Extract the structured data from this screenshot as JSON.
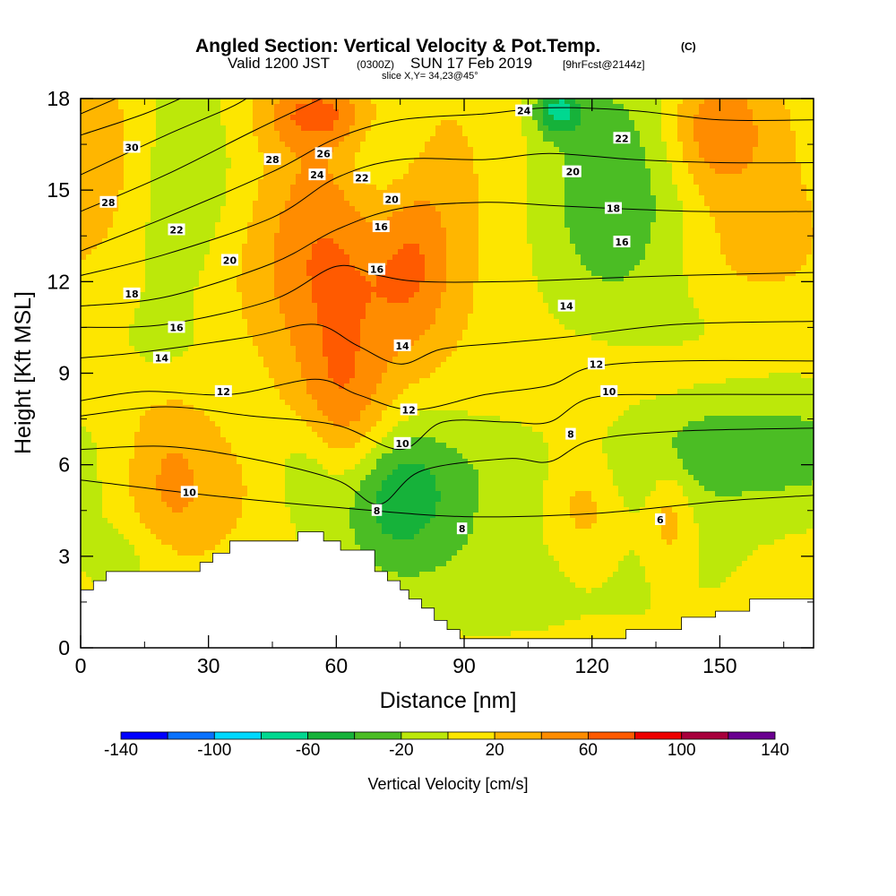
{
  "header": {
    "title": "Angled Section: Vertical Velocity & Pot.Temp.",
    "title_unit": "(C)",
    "valid_prefix": "Valid 1200 JST",
    "valid_z": "(0300Z)",
    "valid_date": "SUN 17 Feb 2019",
    "fcst": "[9hrFcst@2144z]",
    "slice": "slice X,Y= 34,23@45°"
  },
  "chart_data": {
    "type": "heatmap",
    "title": "Angled Section: Vertical Velocity & Pot.Temp.",
    "xlabel": "Distance [nm]",
    "ylabel": "Height [Kft MSL]",
    "xlim": [
      0,
      172
    ],
    "ylim": [
      0,
      18
    ],
    "x_ticks": [
      "0",
      "30",
      "60",
      "90",
      "120",
      "150"
    ],
    "y_ticks": [
      "0",
      "3",
      "6",
      "9",
      "12",
      "15",
      "18"
    ],
    "grid": false,
    "background_value": 10,
    "fill_field": "Vertical Velocity [cm/s]",
    "fill_features": [
      {
        "x": 20,
        "y": 5.5,
        "w": 26,
        "sy": 3.2,
        "v": 38
      },
      {
        "x": 19,
        "y": 10,
        "w": 22,
        "sy": 1.5,
        "v": -12
      },
      {
        "x": 23,
        "y": 15,
        "w": 34,
        "sy": 5,
        "v": -30
      },
      {
        "x": 3,
        "y": 16,
        "w": 35,
        "sy": 3.5,
        "v": 30
      },
      {
        "x": 4,
        "y": 5.5,
        "w": 45,
        "sy": 3,
        "v": -15
      },
      {
        "x": 13,
        "y": 3,
        "w": 25,
        "sy": 1.2,
        "v": -18
      },
      {
        "x": 36,
        "y": 5,
        "w": 45,
        "sy": 2.5,
        "v": 18
      },
      {
        "x": 53,
        "y": 6,
        "w": 18,
        "sy": 2,
        "v": -30
      },
      {
        "x": 61,
        "y": 7.5,
        "w": 26,
        "sy": 3.5,
        "v": 55
      },
      {
        "x": 60,
        "y": 14,
        "w": 38,
        "sy": 4,
        "v": 40
      },
      {
        "x": 56,
        "y": 17.5,
        "w": 30,
        "sy": 1,
        "v": 45
      },
      {
        "x": 47,
        "y": 12,
        "w": 55,
        "sy": 2.5,
        "v": 15
      },
      {
        "x": 70,
        "y": 16,
        "w": 24,
        "sy": 3,
        "v": -40
      },
      {
        "x": 72,
        "y": 5,
        "w": 34,
        "sy": 2.2,
        "v": -55
      },
      {
        "x": 78,
        "y": 12.5,
        "w": 20,
        "sy": 3,
        "v": 35
      },
      {
        "x": 90,
        "y": 15,
        "w": 70,
        "sy": 5,
        "v": 15
      },
      {
        "x": 96,
        "y": 5,
        "w": 150,
        "sy": 3.5,
        "v": -18
      },
      {
        "x": 120,
        "y": 15,
        "w": 45,
        "sy": 5,
        "v": -38
      },
      {
        "x": 112,
        "y": 17.6,
        "w": 12,
        "sy": 0.8,
        "v": -60
      },
      {
        "x": 132,
        "y": 15,
        "w": 40,
        "sy": 4,
        "v": -28
      },
      {
        "x": 118,
        "y": 5,
        "w": 22,
        "sy": 2.5,
        "v": 38
      },
      {
        "x": 119,
        "y": 8,
        "w": 60,
        "sy": 2.5,
        "v": 20
      },
      {
        "x": 138,
        "y": 4.5,
        "w": 12,
        "sy": 2,
        "v": 35
      },
      {
        "x": 144,
        "y": 15,
        "w": 60,
        "sy": 4,
        "v": 18
      },
      {
        "x": 149,
        "y": 17,
        "w": 25,
        "sy": 2,
        "v": 45
      },
      {
        "x": 152,
        "y": 6.5,
        "w": 110,
        "sy": 1.8,
        "v": -42
      },
      {
        "x": 160,
        "y": 10.5,
        "w": 80,
        "sy": 1.5,
        "v": -12
      },
      {
        "x": 160,
        "y": 13,
        "w": 30,
        "sy": 2,
        "v": 12
      },
      {
        "x": 100,
        "y": 2,
        "w": 120,
        "sy": 2,
        "v": -12
      }
    ],
    "terrain": [
      [
        0,
        1.9
      ],
      [
        3,
        1.9
      ],
      [
        3,
        2.2
      ],
      [
        6,
        2.2
      ],
      [
        6,
        2.5
      ],
      [
        25,
        2.5
      ],
      [
        28,
        2.5
      ],
      [
        28,
        2.8
      ],
      [
        31,
        2.8
      ],
      [
        31,
        3.1
      ],
      [
        35,
        3.1
      ],
      [
        35,
        3.5
      ],
      [
        51,
        3.5
      ],
      [
        51,
        3.8
      ],
      [
        57,
        3.8
      ],
      [
        57,
        3.5
      ],
      [
        61,
        3.5
      ],
      [
        61,
        3.2
      ],
      [
        69,
        3.2
      ],
      [
        69,
        2.5
      ],
      [
        72,
        2.5
      ],
      [
        72,
        2.2
      ],
      [
        75,
        2.2
      ],
      [
        75,
        1.9
      ],
      [
        77,
        1.9
      ],
      [
        77,
        1.6
      ],
      [
        80,
        1.6
      ],
      [
        80,
        1.3
      ],
      [
        83,
        1.3
      ],
      [
        83,
        0.9
      ],
      [
        86,
        0.9
      ],
      [
        86,
        0.6
      ],
      [
        89,
        0.6
      ],
      [
        89,
        0.3
      ],
      [
        128,
        0.3
      ],
      [
        128,
        0.6
      ],
      [
        141,
        0.6
      ],
      [
        141,
        1.0
      ],
      [
        149,
        1.0
      ],
      [
        149,
        1.2
      ],
      [
        157,
        1.2
      ],
      [
        157,
        1.6
      ],
      [
        172,
        1.6
      ]
    ],
    "isentropes": [
      {
        "level": 6,
        "pts": [
          [
            0,
            5.5
          ],
          [
            30,
            5
          ],
          [
            60,
            4.6
          ],
          [
            90,
            4.3
          ],
          [
            120,
            4.4
          ],
          [
            150,
            4.8
          ],
          [
            172,
            5
          ]
        ],
        "label": {
          "text": "6",
          "x": 136,
          "y": 4.2
        }
      },
      {
        "level": 8,
        "pts": [
          [
            0,
            6.5
          ],
          [
            20,
            6.6
          ],
          [
            40,
            6.2
          ],
          [
            60,
            5.5
          ],
          [
            70,
            4.7
          ],
          [
            80,
            5.8
          ],
          [
            100,
            6.2
          ],
          [
            110,
            6.1
          ],
          [
            120,
            6.8
          ],
          [
            140,
            7.1
          ],
          [
            172,
            7.2
          ]
        ],
        "label": {
          "text": "8",
          "x": 115,
          "y": 7
        }
      },
      {
        "level": 10,
        "pts": [
          [
            0,
            7.6
          ],
          [
            20,
            7.9
          ],
          [
            40,
            7.6
          ],
          [
            60,
            7.3
          ],
          [
            75,
            6.5
          ],
          [
            85,
            7.4
          ],
          [
            100,
            7.4
          ],
          [
            110,
            7.4
          ],
          [
            120,
            8.2
          ],
          [
            140,
            8.3
          ],
          [
            172,
            8.3
          ]
        ],
        "label": {
          "text": "10",
          "x": 124,
          "y": 8.4
        }
      },
      {
        "level": 12,
        "pts": [
          [
            0,
            8.1
          ],
          [
            15,
            8.4
          ],
          [
            35,
            8.3
          ],
          [
            55,
            8.8
          ],
          [
            65,
            8.3
          ],
          [
            78,
            7.8
          ],
          [
            95,
            8.3
          ],
          [
            110,
            8.6
          ],
          [
            120,
            9.2
          ],
          [
            140,
            9.4
          ],
          [
            172,
            9.4
          ]
        ],
        "label": {
          "text": "12",
          "x": 121,
          "y": 9.3
        }
      },
      {
        "level": 14,
        "pts": [
          [
            0,
            9.5
          ],
          [
            15,
            9.7
          ],
          [
            40,
            10.2
          ],
          [
            55,
            10.6
          ],
          [
            65,
            9.9
          ],
          [
            75,
            9.3
          ],
          [
            85,
            9.8
          ],
          [
            100,
            10
          ],
          [
            115,
            10.2
          ],
          [
            140,
            10.6
          ],
          [
            172,
            10.7
          ]
        ],
        "label": {
          "text": "14",
          "x": 114,
          "y": 11.2
        }
      },
      {
        "level": 16,
        "pts": [
          [
            0,
            10.5
          ],
          [
            20,
            10.6
          ],
          [
            45,
            11.4
          ],
          [
            60,
            12.5
          ],
          [
            70,
            12.2
          ],
          [
            80,
            12
          ],
          [
            100,
            12
          ],
          [
            120,
            12.1
          ],
          [
            140,
            12.2
          ],
          [
            172,
            12.3
          ]
        ],
        "label": {
          "text": "16",
          "x": 127,
          "y": 13.3
        }
      },
      {
        "level": 18,
        "pts": [
          [
            0,
            11.2
          ],
          [
            20,
            11.5
          ],
          [
            45,
            12.6
          ],
          [
            60,
            13.7
          ],
          [
            75,
            14.4
          ],
          [
            95,
            14.6
          ],
          [
            110,
            14.5
          ],
          [
            125,
            14.4
          ],
          [
            145,
            14.3
          ],
          [
            172,
            14.3
          ]
        ],
        "label": {
          "text": "18",
          "x": 125,
          "y": 14.4
        }
      },
      {
        "level": 20,
        "pts": [
          [
            0,
            12.2
          ],
          [
            20,
            12.9
          ],
          [
            45,
            14.1
          ],
          [
            60,
            15.4
          ],
          [
            75,
            16
          ],
          [
            95,
            16
          ],
          [
            110,
            16.2
          ],
          [
            130,
            16
          ],
          [
            150,
            15.9
          ],
          [
            172,
            15.9
          ]
        ],
        "label": {
          "text": "20",
          "x": 115,
          "y": 15.6
        }
      },
      {
        "level": 22,
        "pts": [
          [
            0,
            13
          ],
          [
            20,
            14.1
          ],
          [
            45,
            15.6
          ],
          [
            60,
            16.7
          ],
          [
            75,
            17.3
          ],
          [
            95,
            17.5
          ],
          [
            110,
            17.7
          ],
          [
            130,
            17.6
          ],
          [
            150,
            17.3
          ],
          [
            172,
            17.3
          ]
        ],
        "label": {
          "text": "22",
          "x": 127,
          "y": 16.7
        }
      },
      {
        "level": 24,
        "pts": [
          [
            0,
            14.3
          ],
          [
            20,
            15.5
          ],
          [
            40,
            16.9
          ],
          [
            55,
            17.9
          ],
          [
            60,
            18.2
          ]
        ],
        "label": {
          "text": "24",
          "x": 55.5,
          "y": 15.5
        }
      },
      {
        "level": 26,
        "pts": [
          [
            0,
            15.5
          ],
          [
            20,
            16.8
          ],
          [
            35,
            17.7
          ],
          [
            40,
            18.1
          ]
        ],
        "label": {
          "text": "26",
          "x": 57,
          "y": 16.2
        }
      },
      {
        "level": 28,
        "pts": [
          [
            0,
            16.8
          ],
          [
            15,
            17.5
          ],
          [
            25,
            18.1
          ]
        ],
        "label": {
          "text": "28",
          "x": 45,
          "y": 16
        }
      },
      {
        "level": 30,
        "pts": [
          [
            0,
            17.5
          ],
          [
            10,
            18.1
          ]
        ],
        "label": {
          "text": "30",
          "x": 12,
          "y": 16.4
        }
      }
    ],
    "extra_labels": [
      {
        "text": "28",
        "x": 6.5,
        "y": 14.6
      },
      {
        "text": "22",
        "x": 22.5,
        "y": 13.7
      },
      {
        "text": "20",
        "x": 35,
        "y": 12.7
      },
      {
        "text": "18",
        "x": 12,
        "y": 11.6
      },
      {
        "text": "16",
        "x": 22.5,
        "y": 10.5
      },
      {
        "text": "14",
        "x": 19,
        "y": 9.5
      },
      {
        "text": "12",
        "x": 33.5,
        "y": 8.4
      },
      {
        "text": "10",
        "x": 25.5,
        "y": 5.1
      },
      {
        "text": "8",
        "x": 69.5,
        "y": 4.5
      },
      {
        "text": "8",
        "x": 89.5,
        "y": 3.9
      },
      {
        "text": "10",
        "x": 75.5,
        "y": 6.7
      },
      {
        "text": "12",
        "x": 77,
        "y": 7.8
      },
      {
        "text": "14",
        "x": 75.5,
        "y": 9.9
      },
      {
        "text": "16",
        "x": 69.5,
        "y": 12.4
      },
      {
        "text": "16",
        "x": 70.5,
        "y": 13.8
      },
      {
        "text": "20",
        "x": 73,
        "y": 14.7
      },
      {
        "text": "22",
        "x": 66,
        "y": 15.4
      },
      {
        "text": "24",
        "x": 104,
        "y": 17.6
      },
      {
        "text": "20",
        "x": 115.5,
        "y": 15.6
      }
    ],
    "colorbar": {
      "label": "Vertical Velocity [cm/s]",
      "ticks": [
        "-140",
        "-100",
        "-60",
        "-20",
        "20",
        "60",
        "100",
        "140"
      ],
      "levels": [
        -140,
        -120,
        -100,
        -80,
        -60,
        -40,
        -20,
        0,
        20,
        40,
        60,
        80,
        100,
        120,
        140
      ],
      "colors": [
        "#0000ff",
        "#0a72ff",
        "#00d8ff",
        "#00d890",
        "#16b23a",
        "#4bbd24",
        "#bce80a",
        "#fde600",
        "#ffb600",
        "#ff8c00",
        "#ff5a00",
        "#ee0000",
        "#a8003c",
        "#6a0090"
      ]
    }
  }
}
